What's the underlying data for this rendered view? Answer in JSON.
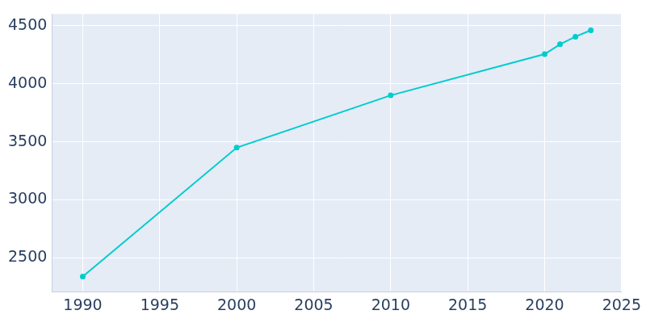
{
  "chart_data": {
    "type": "line",
    "x": [
      1990,
      2000,
      2010,
      2020,
      2021,
      2022,
      2023
    ],
    "values": [
      2340,
      3450,
      3900,
      4255,
      4340,
      4405,
      4460
    ],
    "color": "#00cccc",
    "marker": "circle",
    "xlim": [
      1988,
      2025
    ],
    "xticks": [
      1990,
      1995,
      2000,
      2005,
      2010,
      2015,
      2020,
      2025
    ],
    "ylim": [
      2210,
      4600
    ],
    "yticks": [
      2500,
      3000,
      3500,
      4000,
      4500
    ],
    "grid": true
  }
}
